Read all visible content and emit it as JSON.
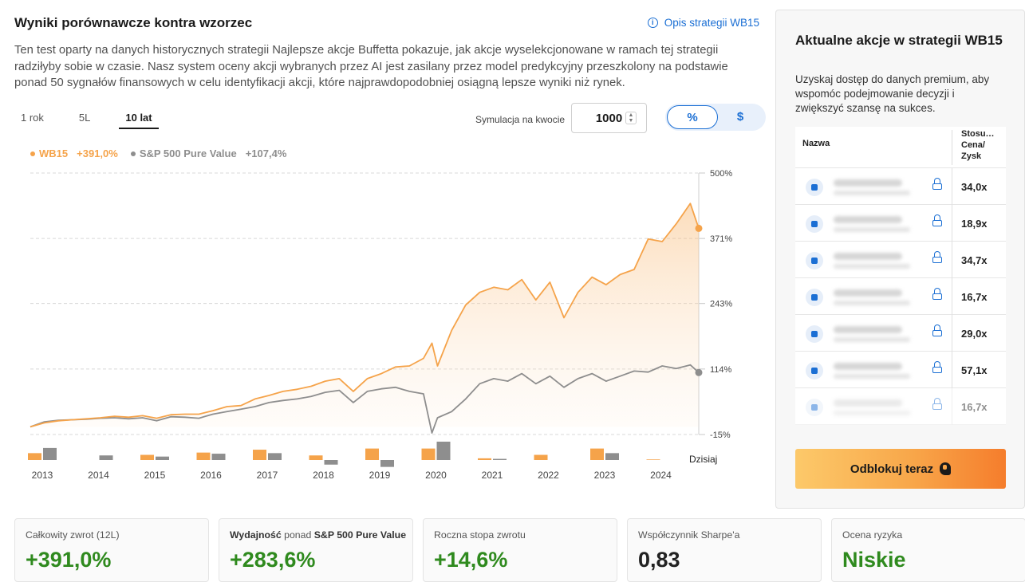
{
  "header": {
    "title": "Wyniki porównawcze kontra wzorzec",
    "strategy_link": "Opis strategii WB15",
    "description": "Ten test oparty na danych historycznych strategii Najlepsze akcje Buffetta pokazuje, jak akcje wyselekcjonowane w ramach tej strategii radziłyby sobie w czasie. Nasz system oceny akcji wybranych przez AI jest zasilany przez model predykcyjny przeszkolony na podstawie ponad 50 sygnałów finansowych w celu identyfikacji akcji, które najprawdopodobniej osiągną lepsze wyniki niż rynek."
  },
  "tabs": [
    {
      "label": "1 rok",
      "active": false
    },
    {
      "label": "5L",
      "active": false
    },
    {
      "label": "10 lat",
      "active": true
    }
  ],
  "simulation": {
    "label": "Symulacja na kwocie",
    "value": "1000"
  },
  "toggle": {
    "percent_label": "%",
    "dollar_label": "$",
    "selected": "%"
  },
  "legend": [
    {
      "name": "WB15",
      "value": "+391,0%",
      "color": "#f5a34a"
    },
    {
      "name": "S&P 500 Pure Value",
      "value": "+107,4%",
      "color": "#8e8e8e"
    }
  ],
  "chart_data": {
    "type": "line",
    "title": "",
    "y_ticks": [
      "500%",
      "371%",
      "243%",
      "114%",
      "-15%"
    ],
    "y_tick_values": [
      500,
      371,
      243,
      114,
      -15
    ],
    "ylim": [
      -15,
      500
    ],
    "x_labels": [
      "2013",
      "2014",
      "2015",
      "2016",
      "2017",
      "2018",
      "2019",
      "2020",
      "2021",
      "2022",
      "2023",
      "2024"
    ],
    "x_end_label": "Dzisiaj",
    "series": [
      {
        "name": "WB15",
        "color": "#f5a34a",
        "x": [
          2013.0,
          2013.25,
          2013.5,
          2013.75,
          2014.0,
          2014.25,
          2014.5,
          2014.75,
          2015.0,
          2015.25,
          2015.5,
          2015.75,
          2016.0,
          2016.25,
          2016.5,
          2016.75,
          2017.0,
          2017.25,
          2017.5,
          2017.75,
          2018.0,
          2018.25,
          2018.5,
          2018.75,
          2019.0,
          2019.25,
          2019.5,
          2019.75,
          2020.0,
          2020.15,
          2020.25,
          2020.5,
          2020.75,
          2021.0,
          2021.25,
          2021.5,
          2021.75,
          2022.0,
          2022.25,
          2022.5,
          2022.75,
          2023.0,
          2023.25,
          2023.5,
          2023.75,
          2024.0,
          2024.25,
          2024.5,
          2024.75,
          2024.9
        ],
        "values": [
          0,
          8,
          12,
          14,
          16,
          18,
          21,
          19,
          22,
          17,
          24,
          25,
          25,
          32,
          40,
          42,
          55,
          62,
          70,
          74,
          80,
          90,
          95,
          70,
          95,
          105,
          118,
          120,
          135,
          165,
          120,
          190,
          240,
          265,
          275,
          270,
          290,
          250,
          285,
          215,
          265,
          295,
          280,
          300,
          310,
          370,
          365,
          400,
          440,
          391
        ]
      },
      {
        "name": "S&P 500 Pure Value",
        "color": "#8e8e8e",
        "x": [
          2013.0,
          2013.25,
          2013.5,
          2013.75,
          2014.0,
          2014.25,
          2014.5,
          2014.75,
          2015.0,
          2015.25,
          2015.5,
          2015.75,
          2016.0,
          2016.25,
          2016.5,
          2016.75,
          2017.0,
          2017.25,
          2017.5,
          2017.75,
          2018.0,
          2018.25,
          2018.5,
          2018.75,
          2019.0,
          2019.25,
          2019.5,
          2019.75,
          2020.0,
          2020.15,
          2020.25,
          2020.5,
          2020.75,
          2021.0,
          2021.25,
          2021.5,
          2021.75,
          2022.0,
          2022.25,
          2022.5,
          2022.75,
          2023.0,
          2023.25,
          2023.5,
          2023.75,
          2024.0,
          2024.25,
          2024.5,
          2024.75,
          2024.9
        ],
        "values": [
          0,
          10,
          13,
          14,
          15,
          17,
          18,
          16,
          18,
          12,
          20,
          19,
          17,
          25,
          30,
          35,
          40,
          48,
          52,
          55,
          60,
          68,
          72,
          48,
          70,
          75,
          78,
          70,
          65,
          -12,
          18,
          30,
          55,
          85,
          95,
          90,
          105,
          85,
          100,
          78,
          95,
          105,
          90,
          100,
          110,
          108,
          120,
          115,
          122,
          107
        ]
      }
    ],
    "annual_bars": {
      "years": [
        "2013",
        "2014",
        "2015",
        "2016",
        "2017",
        "2018",
        "2019",
        "2020",
        "2021",
        "2022",
        "2023",
        "2024"
      ],
      "wb15": [
        12,
        0,
        9,
        13,
        18,
        8,
        20,
        20,
        3,
        9,
        20,
        1
      ],
      "benchmark": [
        21,
        8,
        6,
        11,
        12,
        -8,
        -12,
        32,
        2,
        0,
        12,
        0
      ]
    }
  },
  "stats": [
    {
      "label": "Całkowity zwrot (12L)",
      "value": "+391,0%",
      "tone": "green"
    },
    {
      "label_prefix": "Wydajność",
      "label_mid": " ponad ",
      "label_suffix": "S&P 500 Pure Value",
      "value": "+283,6%",
      "tone": "green"
    },
    {
      "label": "Roczna stopa zwrotu",
      "value": "+14,6%",
      "tone": "green"
    },
    {
      "label": "Współczynnik Sharpe'a",
      "value": "0,83",
      "tone": "dark"
    },
    {
      "label": "Ocena ryzyka",
      "value": "Niskie",
      "tone": "green"
    }
  ],
  "sidebar": {
    "title": "Aktualne akcje w strategii WB15",
    "subtitle": "Uzyskaj dostęp do danych premium, aby wspomóc podejmowanie decyzji i zwiększyć szansę na sukces.",
    "col_name": "Nazwa",
    "col_ratio": "Stosu… Cena/ Zysk",
    "rows": [
      {
        "icon": "briefcase-icon",
        "ratio": "34,0x"
      },
      {
        "icon": "bank-icon",
        "ratio": "18,9x"
      },
      {
        "icon": "laptop-icon",
        "ratio": "34,7x"
      },
      {
        "icon": "chip-icon",
        "ratio": "16,7x"
      },
      {
        "icon": "cart-icon",
        "ratio": "29,0x"
      },
      {
        "icon": "store-icon",
        "ratio": "57,1x"
      },
      {
        "icon": "cart-icon",
        "ratio": "16,7x"
      }
    ],
    "unlock_label": "Odblokuj teraz"
  }
}
